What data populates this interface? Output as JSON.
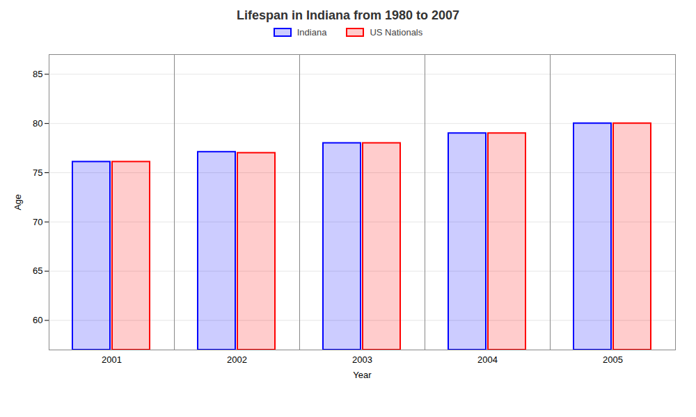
{
  "chart_data": {
    "type": "bar",
    "title": "Lifespan in Indiana from 1980 to 2007",
    "xlabel": "Year",
    "ylabel": "Age",
    "categories": [
      "2001",
      "2002",
      "2003",
      "2004",
      "2005"
    ],
    "series": [
      {
        "name": "Indiana",
        "color": "#0000ff",
        "values": [
          76.1,
          77.1,
          78.0,
          79.0,
          80.0
        ]
      },
      {
        "name": "US Nationals",
        "color": "#ff0000",
        "values": [
          76.1,
          77.0,
          78.0,
          79.0,
          80.0
        ]
      }
    ],
    "ylim": [
      57,
      87
    ],
    "yticks": [
      60,
      65,
      70,
      75,
      80,
      85
    ],
    "grid": true,
    "legend": "top"
  }
}
